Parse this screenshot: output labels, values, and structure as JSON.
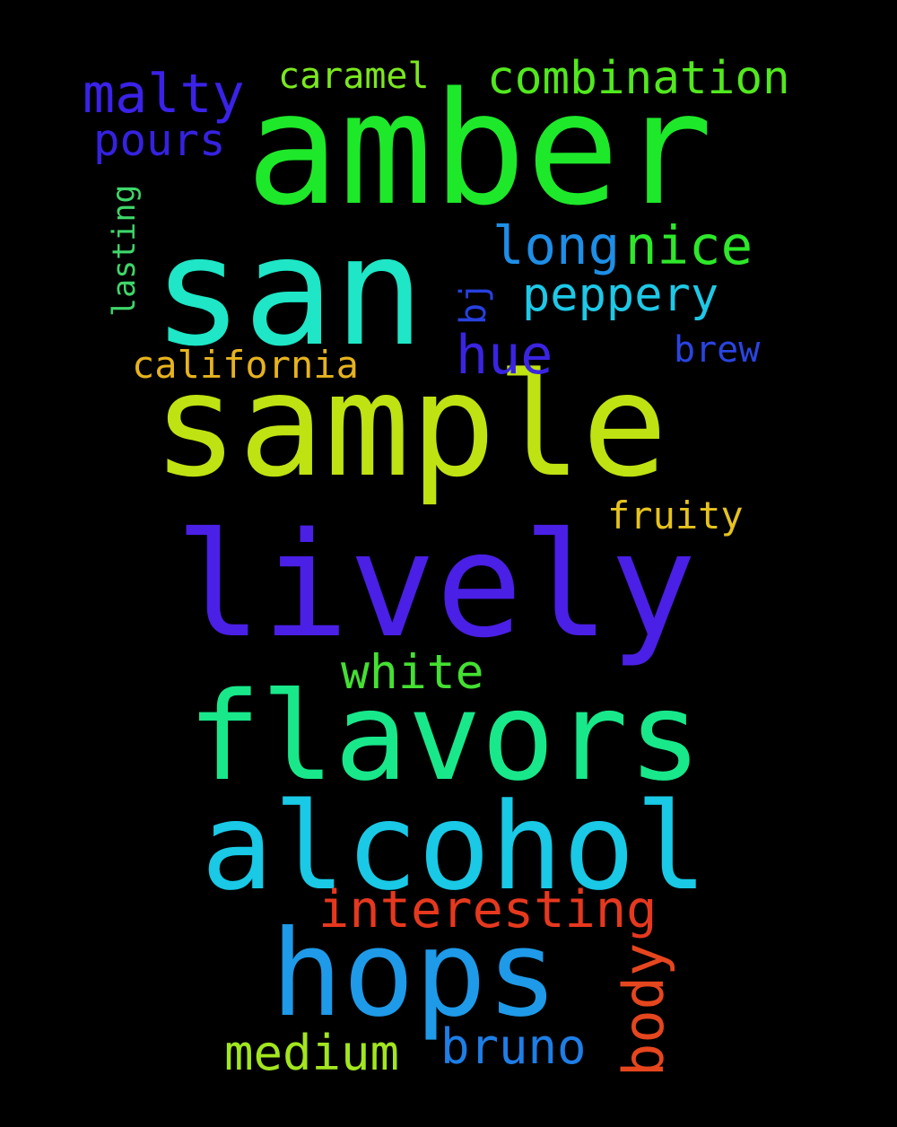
{
  "words": {
    "amber": {
      "text": "amber",
      "color": "#1ee82a"
    },
    "san": {
      "text": "san",
      "color": "#1ee6c6"
    },
    "sample": {
      "text": "sample",
      "color": "#bfe212"
    },
    "lively": {
      "text": "lively",
      "color": "#4a1fe6"
    },
    "flavors": {
      "text": "flavors",
      "color": "#18e88a"
    },
    "alcohol": {
      "text": "alcohol",
      "color": "#19c9e6"
    },
    "hops": {
      "text": "hops",
      "color": "#1e9ae8"
    },
    "malty": {
      "text": "malty",
      "color": "#3a22e8"
    },
    "caramel": {
      "text": "caramel",
      "color": "#7be81e"
    },
    "combination": {
      "text": "combination",
      "color": "#52e81e"
    },
    "pours": {
      "text": "pours",
      "color": "#3522e0"
    },
    "lasting": {
      "text": "lasting",
      "color": "#3ed66a"
    },
    "long": {
      "text": "long",
      "color": "#1e8ee6"
    },
    "nice": {
      "text": "nice",
      "color": "#2ee82a"
    },
    "peppery": {
      "text": "peppery",
      "color": "#1ec8e6"
    },
    "bj": {
      "text": "bj",
      "color": "#2740e0"
    },
    "hue": {
      "text": "hue",
      "color": "#3a24e2"
    },
    "brew": {
      "text": "brew",
      "color": "#2a44e0"
    },
    "california": {
      "text": "california",
      "color": "#e6b21e"
    },
    "fruity": {
      "text": "fruity",
      "color": "#e6c21e"
    },
    "white": {
      "text": "white",
      "color": "#44e032"
    },
    "interesting": {
      "text": "interesting",
      "color": "#e6381e"
    },
    "body": {
      "text": "body",
      "color": "#e6461e"
    },
    "medium": {
      "text": "medium",
      "color": "#a2e61e"
    },
    "bruno": {
      "text": "bruno",
      "color": "#1e7ee6"
    }
  }
}
